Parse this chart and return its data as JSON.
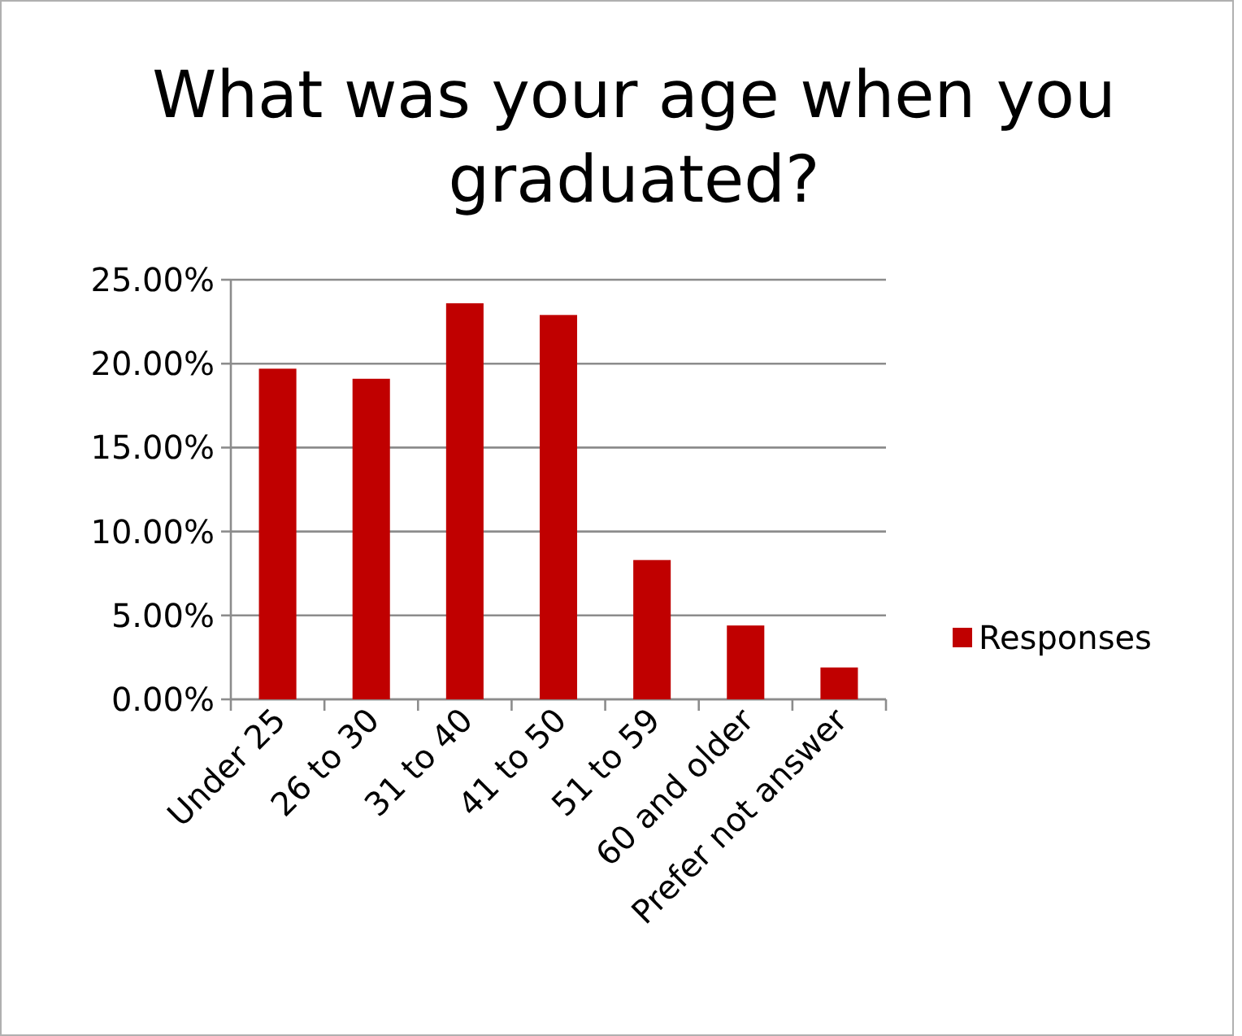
{
  "chart_data": {
    "type": "bar",
    "title": "What was your age when you graduated?",
    "categories": [
      "Under 25",
      "26 to 30",
      "31 to 40",
      "41 to 50",
      "51 to 59",
      "60 and older",
      "Prefer not answer"
    ],
    "series": [
      {
        "name": "Responses",
        "color": "#c00000",
        "values": [
          19.7,
          19.1,
          23.6,
          22.9,
          8.3,
          4.4,
          1.9
        ]
      }
    ],
    "ylim": [
      0,
      25
    ],
    "yticks": [
      {
        "value": 0,
        "label": "0.00%"
      },
      {
        "value": 5,
        "label": "5.00%"
      },
      {
        "value": 10,
        "label": "10.00%"
      },
      {
        "value": 15,
        "label": "15.00%"
      },
      {
        "value": 20,
        "label": "20.00%"
      },
      {
        "value": 25,
        "label": "25.00%"
      }
    ],
    "grid": "y",
    "legend": "right"
  }
}
